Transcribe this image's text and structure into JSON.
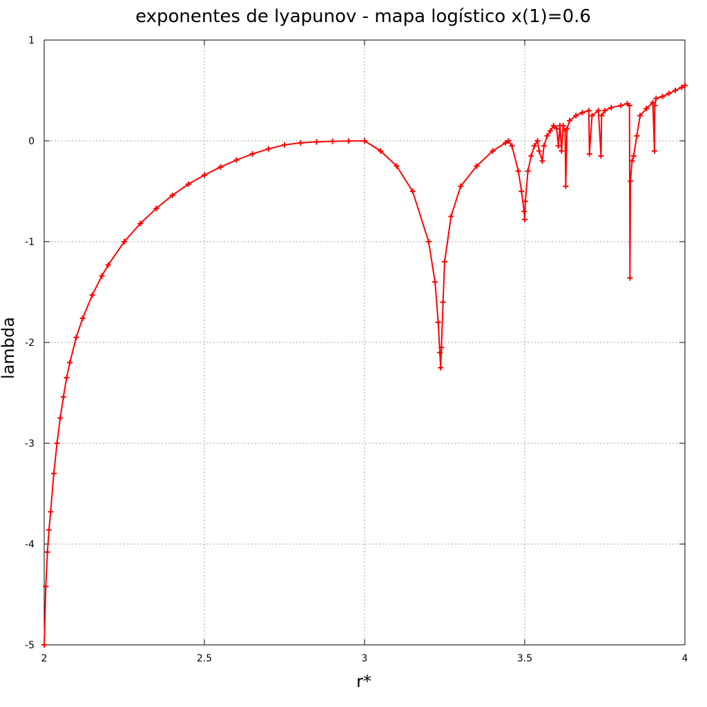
{
  "chart_data": {
    "type": "line",
    "title": "exponentes de lyapunov - mapa logístico x(1)=0.6",
    "xlabel": "r*",
    "ylabel": "lambda",
    "xlim": [
      2,
      4
    ],
    "ylim": [
      -5,
      1
    ],
    "x_ticks": [
      2,
      2.5,
      3,
      3.5,
      4
    ],
    "x_tick_labels": [
      "2",
      "2.5",
      "3",
      "3.5",
      "4"
    ],
    "y_ticks": [
      1,
      0,
      -1,
      -2,
      -3,
      -4,
      -5
    ],
    "y_tick_labels": [
      "1",
      "0",
      "-1",
      "-2",
      "-3",
      "-4",
      "-5"
    ],
    "grid": true,
    "legend": "none",
    "color": "#ff0000",
    "marker": "plus",
    "series": [
      {
        "x": [
          2.0,
          2.005,
          2.01,
          2.015,
          2.02,
          2.03,
          2.04,
          2.05,
          2.06,
          2.07,
          2.08,
          2.1,
          2.12,
          2.15,
          2.18,
          2.2,
          2.25,
          2.3,
          2.35,
          2.4,
          2.45,
          2.5,
          2.55,
          2.6,
          2.65,
          2.7,
          2.75,
          2.8,
          2.85,
          2.9,
          2.95,
          3.0,
          3.05,
          3.1,
          3.15,
          3.2,
          3.22,
          3.23,
          3.235,
          3.2375,
          3.24,
          3.245,
          3.25,
          3.27,
          3.3,
          3.35,
          3.4,
          3.44,
          3.449,
          3.46,
          3.48,
          3.49,
          3.498,
          3.5,
          3.502,
          3.51,
          3.52,
          3.53,
          3.54,
          3.545,
          3.555,
          3.56,
          3.57,
          3.58,
          3.59,
          3.6,
          3.605,
          3.61,
          3.615,
          3.62,
          3.626,
          3.628,
          3.632,
          3.64,
          3.66,
          3.68,
          3.7,
          3.702,
          3.71,
          3.73,
          3.738,
          3.74,
          3.75,
          3.77,
          3.8,
          3.82,
          3.827,
          3.8284,
          3.83,
          3.835,
          3.84,
          3.85,
          3.86,
          3.88,
          3.9,
          3.905,
          3.906,
          3.91,
          3.93,
          3.95,
          3.97,
          3.99,
          4.0
        ],
        "y": [
          -5.0,
          -4.42,
          -4.08,
          -3.86,
          -3.68,
          -3.3,
          -3.0,
          -2.75,
          -2.54,
          -2.35,
          -2.2,
          -1.95,
          -1.76,
          -1.53,
          -1.34,
          -1.23,
          -1.0,
          -0.82,
          -0.67,
          -0.54,
          -0.43,
          -0.34,
          -0.26,
          -0.19,
          -0.13,
          -0.08,
          -0.04,
          -0.02,
          -0.01,
          -0.005,
          -0.002,
          0.0,
          -0.1,
          -0.25,
          -0.5,
          -1.0,
          -1.4,
          -1.8,
          -2.1,
          -2.25,
          -2.05,
          -1.6,
          -1.2,
          -0.75,
          -0.45,
          -0.25,
          -0.1,
          -0.02,
          0.0,
          -0.05,
          -0.3,
          -0.5,
          -0.7,
          -0.78,
          -0.6,
          -0.3,
          -0.15,
          -0.05,
          0.0,
          -0.1,
          -0.2,
          -0.05,
          0.05,
          0.1,
          0.15,
          0.12,
          -0.05,
          0.15,
          -0.1,
          0.15,
          0.1,
          -0.45,
          0.12,
          0.2,
          0.25,
          0.28,
          0.3,
          -0.13,
          0.25,
          0.3,
          -0.15,
          0.25,
          0.3,
          0.33,
          0.35,
          0.37,
          0.35,
          -1.36,
          -0.4,
          -0.2,
          -0.15,
          0.05,
          0.25,
          0.32,
          0.38,
          -0.1,
          0.35,
          0.42,
          0.44,
          0.47,
          0.5,
          0.53,
          0.55
        ]
      }
    ]
  }
}
